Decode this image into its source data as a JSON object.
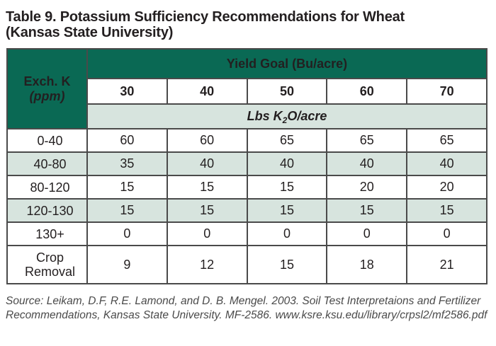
{
  "title": {
    "line1": "Table 9. Potassium Sufficiency Recommendations for Wheat",
    "line2": "(Kansas State University)"
  },
  "table": {
    "corner": {
      "line1": "Exch. K",
      "line2": "(ppm)"
    },
    "yield_goal_label": "Yield Goal (Bu/acre)",
    "yield_columns": [
      "30",
      "40",
      "50",
      "60",
      "70"
    ],
    "units": {
      "prefix": "Lbs K",
      "subscript": "2",
      "suffix": "O/acre"
    },
    "rows": [
      {
        "label": "0-40",
        "values": [
          "60",
          "60",
          "65",
          "65",
          "65"
        ]
      },
      {
        "label": "40-80",
        "values": [
          "35",
          "40",
          "40",
          "40",
          "40"
        ]
      },
      {
        "label": "80-120",
        "values": [
          "15",
          "15",
          "15",
          "20",
          "20"
        ]
      },
      {
        "label": "120-130",
        "values": [
          "15",
          "15",
          "15",
          "15",
          "15"
        ]
      },
      {
        "label": "130+",
        "values": [
          "0",
          "0",
          "0",
          "0",
          "0"
        ]
      },
      {
        "label": "Crop Removal",
        "values": [
          "9",
          "12",
          "15",
          "18",
          "21"
        ]
      }
    ]
  },
  "source": {
    "text": "Source: Leikam, D.F, R.E. Lamond, and D. B. Mengel. 2003. Soil Test Interpretaions and Fertilizer Recommendations, Kansas State University. MF-2586. www.ksre.ksu.edu/library/crpsl2/mf2586.pdf"
  },
  "colors": {
    "dark_green": "#0a6954",
    "light_green": "#d7e4de",
    "border_col": "#4a4a4a",
    "text_col": "#231f20",
    "source_col": "#4a4a4a"
  }
}
